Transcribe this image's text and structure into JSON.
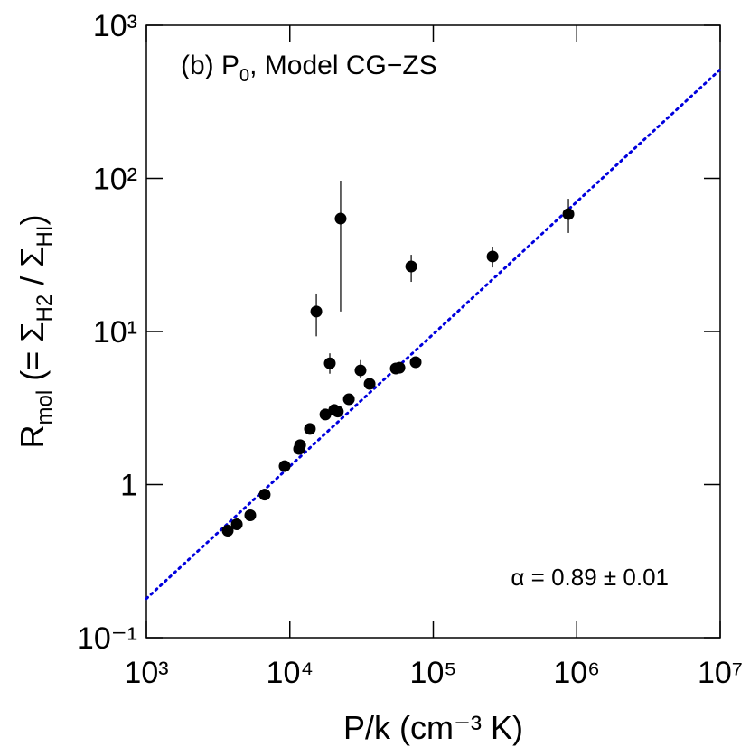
{
  "chart_data": {
    "type": "scatter",
    "log_x": true,
    "log_y": true,
    "annotation": [
      "(b) P",
      "0",
      ", Model CG−ZS"
    ],
    "fit_label": "α = 0.89 ± 0.01",
    "xlabel": "P/k (cm⁻³ K)",
    "ylabel": [
      "R",
      "mol",
      " (= Σ",
      "H2",
      " / Σ",
      "HI",
      ")"
    ],
    "xlim": [
      1000,
      10000000
    ],
    "ylim": [
      0.1,
      1000
    ],
    "xticks": [
      {
        "value": 1000,
        "label": "10³"
      },
      {
        "value": 10000,
        "label": "10⁴"
      },
      {
        "value": 100000,
        "label": "10⁵"
      },
      {
        "value": 1000000,
        "label": "10⁶"
      },
      {
        "value": 10000000,
        "label": "10⁷"
      }
    ],
    "yticks": [
      {
        "value": 0.1,
        "label": "10⁻¹"
      },
      1,
      {
        "value": 10,
        "label": "10¹"
      },
      {
        "value": 100,
        "label": "10²"
      },
      {
        "value": 1000,
        "label": "10³"
      }
    ],
    "series": [
      {
        "color": "#000000",
        "x": [
          3690,
          4270,
          5300,
          6680,
          9200,
          11600,
          11800,
          13800,
          15300,
          17700,
          19000,
          20400,
          21600,
          22600,
          25800,
          31100,
          36000,
          54800,
          58100,
          70200,
          75400,
          259000,
          875000
        ],
        "values": [
          0.5,
          0.55,
          0.63,
          0.86,
          1.32,
          1.71,
          1.81,
          2.31,
          13.5,
          2.87,
          6.2,
          3.07,
          3.0,
          54.6,
          3.61,
          5.57,
          4.55,
          5.73,
          5.8,
          26.6,
          6.3,
          30.9,
          58.5
        ],
        "y_lower": [
          null,
          null,
          null,
          null,
          null,
          null,
          null,
          null,
          9.3,
          null,
          5.3,
          null,
          null,
          13.5,
          null,
          5.0,
          null,
          null,
          null,
          21.1,
          null,
          26.2,
          44
        ],
        "y_upper": [
          null,
          null,
          null,
          null,
          null,
          null,
          null,
          null,
          17.7,
          null,
          7.2,
          null,
          null,
          96.6,
          null,
          6.5,
          null,
          null,
          null,
          31.7,
          null,
          35.5,
          73.6
        ]
      }
    ],
    "fit": {
      "color": "#0000dd",
      "x": [
        1000,
        10000000
      ],
      "values": [
        0.18,
        514
      ]
    }
  }
}
